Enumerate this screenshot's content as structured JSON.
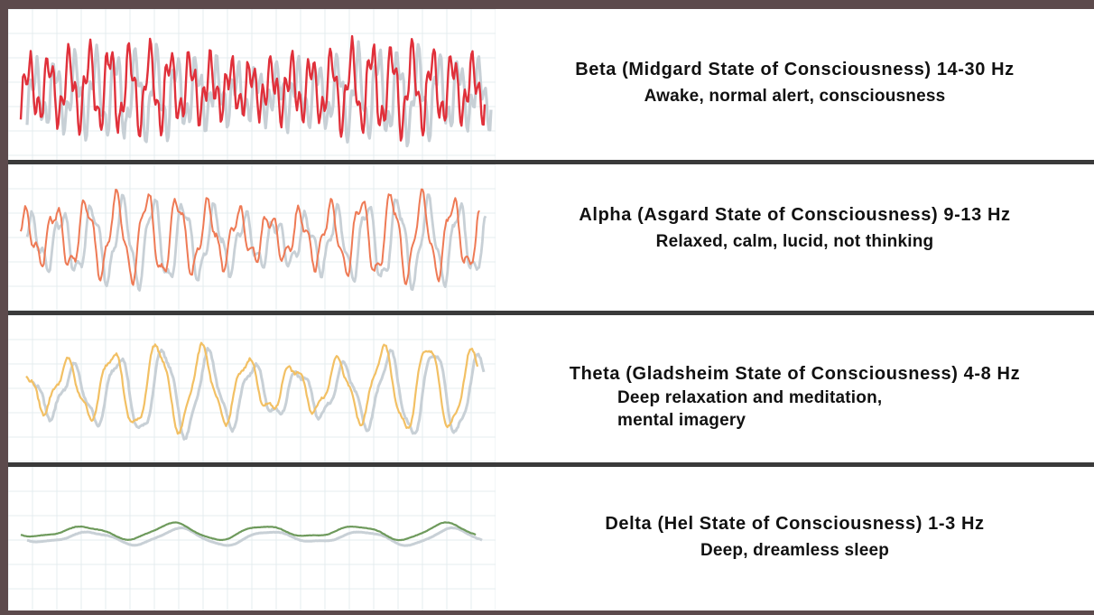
{
  "bands": [
    {
      "id": "beta",
      "title": "Beta (Midgard State of Consciousness) 14-30 Hz",
      "description": [
        "Awake, normal alert, consciousness"
      ],
      "color": "#e0303a",
      "shadow_color": "#c8d0d6"
    },
    {
      "id": "alpha",
      "title": "Alpha (Asgard State of Consciousness) 9-13 Hz",
      "description": [
        "Relaxed, calm, lucid, not thinking"
      ],
      "color": "#ee7a55",
      "shadow_color": "#c8d0d6"
    },
    {
      "id": "theta",
      "title": "Theta (Gladsheim State of Consciousness) 4-8 Hz",
      "description": [
        "Deep relaxation and meditation,",
        "mental imagery"
      ],
      "color": "#f2c064",
      "shadow_color": "#c8d0d6"
    },
    {
      "id": "delta",
      "title": "Delta (Hel State of Consciousness) 1-3 Hz",
      "description": [
        "Deep, dreamless sleep"
      ],
      "color": "#6e9a5c",
      "shadow_color": "#c8d0d6"
    }
  ],
  "colors": {
    "frame": "#5c4a4c",
    "divider": "#3a3a3a",
    "grid": "#e4ecef"
  }
}
